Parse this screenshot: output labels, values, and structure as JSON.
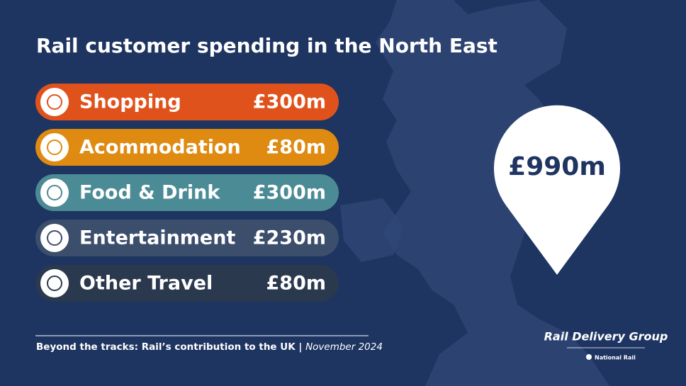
{
  "title": "Rail customer spending in the North East",
  "items": [
    {
      "label": "Shopping",
      "amount": "£300m",
      "color": "#e0521c"
    },
    {
      "label": "Acommodation",
      "amount": "£80m",
      "color": "#df8a10"
    },
    {
      "label": "Food & Drink",
      "amount": "£300m",
      "color": "#4b8b96"
    },
    {
      "label": "Entertainment",
      "amount": "£230m",
      "color": "#3b4e6c"
    },
    {
      "label": "Other Travel",
      "amount": "£80m",
      "color": "#2b394f"
    }
  ],
  "total": "£990m",
  "footer": {
    "text": "Beyond the tracks: Rail’s contribution to the UK",
    "separator": " | ",
    "date": "November 2024"
  },
  "logo": {
    "name": "Rail Delivery Group",
    "sub": "National Rail"
  }
}
